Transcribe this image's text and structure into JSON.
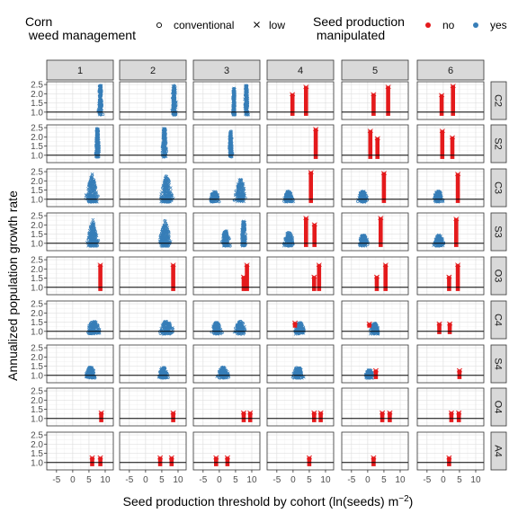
{
  "chart_data": {
    "type": "scatter",
    "facet_columns": [
      "1",
      "2",
      "3",
      "4",
      "5",
      "6"
    ],
    "facet_rows": [
      "C2",
      "S2",
      "C3",
      "S3",
      "O3",
      "C4",
      "S4",
      "O4",
      "A4"
    ],
    "xlabel_main": "Seed production threshold by cohort (ln(seeds) m",
    "xlabel_sup": "−2",
    "xlabel_close": ")",
    "ylabel": "Annualized population growth rate",
    "x_ticks": [
      -5,
      0,
      5,
      10
    ],
    "y_ticks": [
      1.0,
      1.5,
      2.0,
      2.5
    ],
    "y_tick_labels": [
      "1.0",
      "1.5",
      "2.0",
      "2.5"
    ],
    "xlim": [
      -8,
      12.5
    ],
    "ylim": [
      0.6,
      2.65
    ],
    "reference_line_y": 1.0,
    "legend": {
      "shape_title_line1": "Corn",
      "shape_title_line2": " weed management",
      "shape_items": [
        {
          "label": "conventional",
          "symbol": "circle"
        },
        {
          "label": "low",
          "symbol": "cross"
        }
      ],
      "color_title_line1": "Seed production",
      "color_title_line2": " manipulated",
      "color_items": [
        {
          "label": "no",
          "color": "#e41a1c"
        },
        {
          "label": "yes",
          "color": "#377eb8"
        }
      ]
    },
    "colors": {
      "no": "#e41a1c",
      "yes": "#377eb8",
      "strip": "#d9d9d9"
    },
    "panels": [
      {
        "row": "C2",
        "col": "1",
        "blobs": [
          {
            "xc": 8.5,
            "xw": 1.8,
            "ybot": 0.85,
            "ytop": 2.45,
            "shape": "tall",
            "color": "yes"
          }
        ]
      },
      {
        "row": "C2",
        "col": "2",
        "blobs": [
          {
            "xc": 8.8,
            "xw": 1.8,
            "ybot": 0.85,
            "ytop": 2.45,
            "shape": "tall",
            "color": "yes"
          }
        ]
      },
      {
        "row": "C2",
        "col": "3",
        "blobs": [
          {
            "xc": 4.5,
            "xw": 1.3,
            "ybot": 0.85,
            "ytop": 2.3,
            "shape": "tall",
            "color": "yes"
          },
          {
            "xc": 8.3,
            "xw": 1.6,
            "ybot": 0.85,
            "ytop": 2.45,
            "shape": "tall",
            "color": "yes"
          }
        ]
      },
      {
        "row": "C2",
        "col": "4",
        "bars": [
          {
            "x": -0.2,
            "ybot": 0.8,
            "ytop": 2.0,
            "color": "no"
          },
          {
            "x": 4.0,
            "ybot": 0.8,
            "ytop": 2.4,
            "color": "no"
          }
        ]
      },
      {
        "row": "C2",
        "col": "5",
        "bars": [
          {
            "x": 1.8,
            "ybot": 0.8,
            "ytop": 2.0,
            "color": "no"
          },
          {
            "x": 6.3,
            "ybot": 0.8,
            "ytop": 2.4,
            "color": "no"
          }
        ]
      },
      {
        "row": "C2",
        "col": "6",
        "bars": [
          {
            "x": -0.5,
            "ybot": 0.8,
            "ytop": 1.95,
            "color": "no"
          },
          {
            "x": 3.0,
            "ybot": 0.8,
            "ytop": 2.45,
            "color": "no"
          }
        ]
      },
      {
        "row": "S2",
        "col": "1",
        "blobs": [
          {
            "xc": 7.6,
            "xw": 1.8,
            "ybot": 0.9,
            "ytop": 2.45,
            "shape": "tall",
            "color": "yes"
          }
        ]
      },
      {
        "row": "S2",
        "col": "2",
        "blobs": [
          {
            "xc": 5.8,
            "xw": 2.0,
            "ybot": 0.9,
            "ytop": 2.45,
            "shape": "tall",
            "color": "yes"
          }
        ]
      },
      {
        "row": "S2",
        "col": "3",
        "blobs": [
          {
            "xc": 3.5,
            "xw": 1.6,
            "ybot": 0.9,
            "ytop": 2.3,
            "shape": "tall",
            "color": "yes"
          }
        ]
      },
      {
        "row": "S2",
        "col": "4",
        "bars": [
          {
            "x": 7.0,
            "ybot": 0.8,
            "ytop": 2.45,
            "color": "no"
          }
        ]
      },
      {
        "row": "S2",
        "col": "5",
        "bars": [
          {
            "x": 0.8,
            "ybot": 0.8,
            "ytop": 2.35,
            "color": "no"
          },
          {
            "x": 3.0,
            "ybot": 0.8,
            "ytop": 1.95,
            "color": "no"
          }
        ]
      },
      {
        "row": "S2",
        "col": "6",
        "bars": [
          {
            "x": -0.3,
            "ybot": 0.8,
            "ytop": 2.35,
            "color": "no"
          },
          {
            "x": 2.8,
            "ybot": 0.8,
            "ytop": 2.0,
            "color": "no"
          }
        ]
      },
      {
        "row": "C3",
        "col": "1",
        "blobs": [
          {
            "xc": 6.0,
            "xw": 4.5,
            "ybot": 0.85,
            "ytop": 2.4,
            "shape": "wide",
            "color": "yes"
          }
        ]
      },
      {
        "row": "C3",
        "col": "2",
        "blobs": [
          {
            "xc": 6.5,
            "xw": 4.5,
            "ybot": 0.85,
            "ytop": 2.45,
            "shape": "wide",
            "color": "yes"
          }
        ]
      },
      {
        "row": "C3",
        "col": "3",
        "blobs": [
          {
            "xc": -1.5,
            "xw": 3.5,
            "ybot": 0.85,
            "ytop": 1.45,
            "shape": "mound",
            "color": "yes"
          },
          {
            "xc": 6.5,
            "xw": 4.2,
            "ybot": 0.85,
            "ytop": 2.1,
            "shape": "mound",
            "color": "yes"
          }
        ]
      },
      {
        "row": "C3",
        "col": "4",
        "blobs": [
          {
            "xc": -1.5,
            "xw": 3.5,
            "ybot": 0.85,
            "ytop": 1.45,
            "shape": "mound",
            "color": "yes"
          }
        ],
        "bars": [
          {
            "x": 5.5,
            "ybot": 0.8,
            "ytop": 2.5,
            "color": "no"
          }
        ]
      },
      {
        "row": "C3",
        "col": "5",
        "blobs": [
          {
            "xc": -1.5,
            "xw": 3.5,
            "ybot": 0.85,
            "ytop": 1.45,
            "shape": "mound",
            "color": "yes"
          }
        ],
        "bars": [
          {
            "x": 5.0,
            "ybot": 0.8,
            "ytop": 2.45,
            "color": "no"
          }
        ]
      },
      {
        "row": "C3",
        "col": "6",
        "blobs": [
          {
            "xc": -1.5,
            "xw": 3.5,
            "ybot": 0.85,
            "ytop": 1.45,
            "shape": "mound",
            "color": "yes"
          }
        ],
        "bars": [
          {
            "x": 4.5,
            "ybot": 0.8,
            "ytop": 2.4,
            "color": "no"
          }
        ]
      },
      {
        "row": "S3",
        "col": "1",
        "blobs": [
          {
            "xc": 6.2,
            "xw": 4.2,
            "ybot": 0.85,
            "ytop": 2.35,
            "shape": "wide",
            "color": "yes"
          }
        ]
      },
      {
        "row": "S3",
        "col": "2",
        "blobs": [
          {
            "xc": 6.0,
            "xw": 4.5,
            "ybot": 0.85,
            "ytop": 2.3,
            "shape": "wide",
            "color": "yes"
          }
        ]
      },
      {
        "row": "S3",
        "col": "3",
        "blobs": [
          {
            "xc": 2.0,
            "xw": 3.0,
            "ybot": 0.85,
            "ytop": 1.7,
            "shape": "mound",
            "color": "yes"
          },
          {
            "xc": 7.5,
            "xw": 2.2,
            "ybot": 0.85,
            "ytop": 2.2,
            "shape": "tall",
            "color": "yes"
          }
        ]
      },
      {
        "row": "S3",
        "col": "4",
        "blobs": [
          {
            "xc": -1.3,
            "xw": 3.5,
            "ybot": 0.85,
            "ytop": 1.6,
            "shape": "mound",
            "color": "yes"
          }
        ],
        "bars": [
          {
            "x": 4.0,
            "ybot": 0.8,
            "ytop": 2.4,
            "color": "no"
          },
          {
            "x": 6.6,
            "ybot": 0.8,
            "ytop": 2.05,
            "color": "no"
          }
        ]
      },
      {
        "row": "S3",
        "col": "5",
        "blobs": [
          {
            "xc": -1.3,
            "xw": 3.5,
            "ybot": 0.85,
            "ytop": 1.45,
            "shape": "mound",
            "color": "yes"
          }
        ],
        "bars": [
          {
            "x": 4.0,
            "ybot": 0.8,
            "ytop": 2.4,
            "color": "no"
          }
        ]
      },
      {
        "row": "S3",
        "col": "6",
        "blobs": [
          {
            "xc": -1.3,
            "xw": 3.5,
            "ybot": 0.85,
            "ytop": 1.45,
            "shape": "mound",
            "color": "yes"
          }
        ],
        "bars": [
          {
            "x": 4.0,
            "ybot": 0.8,
            "ytop": 2.35,
            "color": "no"
          }
        ]
      },
      {
        "row": "O3",
        "col": "1",
        "bars": [
          {
            "x": 8.5,
            "ybot": 0.8,
            "ytop": 2.25,
            "color": "no"
          }
        ]
      },
      {
        "row": "O3",
        "col": "2",
        "bars": [
          {
            "x": 8.5,
            "ybot": 0.8,
            "ytop": 2.25,
            "color": "no"
          }
        ]
      },
      {
        "row": "O3",
        "col": "3",
        "bars": [
          {
            "x": 7.5,
            "ybot": 0.8,
            "ytop": 1.6,
            "color": "no"
          },
          {
            "x": 8.5,
            "ybot": 0.8,
            "ytop": 2.25,
            "color": "no"
          }
        ]
      },
      {
        "row": "O3",
        "col": "4",
        "bars": [
          {
            "x": 6.5,
            "ybot": 0.8,
            "ytop": 1.6,
            "color": "no"
          },
          {
            "x": 8.0,
            "ybot": 0.8,
            "ytop": 2.25,
            "color": "no"
          }
        ]
      },
      {
        "row": "O3",
        "col": "5",
        "bars": [
          {
            "x": 2.8,
            "ybot": 0.8,
            "ytop": 1.6,
            "color": "no"
          },
          {
            "x": 5.5,
            "ybot": 0.8,
            "ytop": 2.25,
            "color": "no"
          }
        ]
      },
      {
        "row": "O3",
        "col": "6",
        "bars": [
          {
            "x": 1.8,
            "ybot": 0.8,
            "ytop": 1.6,
            "color": "no"
          },
          {
            "x": 4.5,
            "ybot": 0.8,
            "ytop": 2.25,
            "color": "no"
          }
        ]
      },
      {
        "row": "C4",
        "col": "1",
        "blobs": [
          {
            "xc": 6.5,
            "xw": 5.0,
            "ybot": 0.85,
            "ytop": 1.55,
            "shape": "mound",
            "color": "yes"
          }
        ]
      },
      {
        "row": "C4",
        "col": "2",
        "blobs": [
          {
            "xc": 6.5,
            "xw": 5.0,
            "ybot": 0.85,
            "ytop": 1.55,
            "shape": "mound",
            "color": "yes"
          }
        ]
      },
      {
        "row": "C4",
        "col": "3",
        "blobs": [
          {
            "xc": -0.8,
            "xw": 3.8,
            "ybot": 0.85,
            "ytop": 1.5,
            "shape": "mound",
            "color": "yes"
          },
          {
            "xc": 6.5,
            "xw": 4.2,
            "ybot": 0.85,
            "ytop": 1.55,
            "shape": "mound",
            "color": "yes"
          }
        ]
      },
      {
        "row": "C4",
        "col": "4",
        "blobs": [
          {
            "xc": 2.0,
            "xw": 3.8,
            "ybot": 0.85,
            "ytop": 1.5,
            "shape": "mound",
            "color": "yes"
          }
        ],
        "bars": [
          {
            "x": 0.6,
            "ybot": 1.2,
            "ytop": 1.5,
            "color": "no"
          }
        ]
      },
      {
        "row": "C4",
        "col": "5",
        "blobs": [
          {
            "xc": 2.2,
            "xw": 3.5,
            "ybot": 0.85,
            "ytop": 1.45,
            "shape": "mound",
            "color": "yes"
          }
        ],
        "bars": [
          {
            "x": 0.5,
            "ybot": 1.2,
            "ytop": 1.45,
            "color": "no"
          }
        ]
      },
      {
        "row": "C4",
        "col": "6",
        "bars": [
          {
            "x": -1.2,
            "ybot": 0.85,
            "ytop": 1.45,
            "color": "no"
          },
          {
            "x": 2.0,
            "ybot": 0.85,
            "ytop": 1.45,
            "color": "no"
          }
        ]
      },
      {
        "row": "S4",
        "col": "1",
        "blobs": [
          {
            "xc": 5.5,
            "xw": 3.5,
            "ybot": 0.85,
            "ytop": 1.45,
            "shape": "mound",
            "color": "yes"
          }
        ]
      },
      {
        "row": "S4",
        "col": "2",
        "blobs": [
          {
            "xc": 5.5,
            "xw": 3.5,
            "ybot": 0.85,
            "ytop": 1.45,
            "shape": "mound",
            "color": "yes"
          }
        ]
      },
      {
        "row": "S4",
        "col": "3",
        "blobs": [
          {
            "xc": 1.2,
            "xw": 4.2,
            "ybot": 0.85,
            "ytop": 1.45,
            "shape": "mound",
            "color": "yes"
          }
        ]
      },
      {
        "row": "S4",
        "col": "4",
        "blobs": [
          {
            "xc": 1.5,
            "xw": 4.0,
            "ybot": 0.85,
            "ytop": 1.45,
            "shape": "mound",
            "color": "yes"
          }
        ]
      },
      {
        "row": "S4",
        "col": "5",
        "blobs": [
          {
            "xc": 0.5,
            "xw": 3.0,
            "ybot": 0.85,
            "ytop": 1.3,
            "shape": "mound",
            "color": "yes"
          }
        ],
        "bars": [
          {
            "x": 2.5,
            "ybot": 0.8,
            "ytop": 1.3,
            "color": "no"
          }
        ]
      },
      {
        "row": "S4",
        "col": "6",
        "bars": [
          {
            "x": 5.0,
            "ybot": 0.8,
            "ytop": 1.3,
            "color": "no"
          }
        ]
      },
      {
        "row": "O4",
        "col": "1",
        "bars": [
          {
            "x": 8.8,
            "ybot": 0.8,
            "ytop": 1.35,
            "color": "no"
          }
        ]
      },
      {
        "row": "O4",
        "col": "2",
        "bars": [
          {
            "x": 8.5,
            "ybot": 0.8,
            "ytop": 1.35,
            "color": "no"
          }
        ]
      },
      {
        "row": "O4",
        "col": "3",
        "bars": [
          {
            "x": 7.5,
            "ybot": 0.8,
            "ytop": 1.35,
            "color": "no"
          },
          {
            "x": 9.5,
            "ybot": 0.8,
            "ytop": 1.35,
            "color": "no"
          }
        ]
      },
      {
        "row": "O4",
        "col": "4",
        "bars": [
          {
            "x": 6.5,
            "ybot": 0.8,
            "ytop": 1.35,
            "color": "no"
          },
          {
            "x": 8.5,
            "ybot": 0.8,
            "ytop": 1.35,
            "color": "no"
          }
        ]
      },
      {
        "row": "O4",
        "col": "5",
        "bars": [
          {
            "x": 4.5,
            "ybot": 0.8,
            "ytop": 1.35,
            "color": "no"
          },
          {
            "x": 6.8,
            "ybot": 0.8,
            "ytop": 1.35,
            "color": "no"
          }
        ]
      },
      {
        "row": "O4",
        "col": "6",
        "bars": [
          {
            "x": 2.5,
            "ybot": 0.8,
            "ytop": 1.35,
            "color": "no"
          },
          {
            "x": 4.8,
            "ybot": 0.8,
            "ytop": 1.35,
            "color": "no"
          }
        ]
      },
      {
        "row": "A4",
        "col": "1",
        "bars": [
          {
            "x": 6.0,
            "ybot": 0.8,
            "ytop": 1.3,
            "color": "no"
          },
          {
            "x": 8.5,
            "ybot": 0.8,
            "ytop": 1.3,
            "color": "no"
          }
        ]
      },
      {
        "row": "A4",
        "col": "2",
        "bars": [
          {
            "x": 4.5,
            "ybot": 0.8,
            "ytop": 1.3,
            "color": "no"
          },
          {
            "x": 8.0,
            "ybot": 0.8,
            "ytop": 1.3,
            "color": "no"
          }
        ]
      },
      {
        "row": "A4",
        "col": "3",
        "bars": [
          {
            "x": -1.0,
            "ybot": 0.8,
            "ytop": 1.3,
            "color": "no"
          },
          {
            "x": 2.5,
            "ybot": 0.8,
            "ytop": 1.3,
            "color": "no"
          }
        ]
      },
      {
        "row": "A4",
        "col": "4",
        "bars": [
          {
            "x": 5.0,
            "ybot": 0.8,
            "ytop": 1.3,
            "color": "no"
          }
        ]
      },
      {
        "row": "A4",
        "col": "5",
        "bars": [
          {
            "x": 1.8,
            "ybot": 0.8,
            "ytop": 1.3,
            "color": "no"
          }
        ]
      },
      {
        "row": "A4",
        "col": "6",
        "bars": [
          {
            "x": 1.8,
            "ybot": 0.8,
            "ytop": 1.3,
            "color": "no"
          }
        ]
      }
    ]
  }
}
